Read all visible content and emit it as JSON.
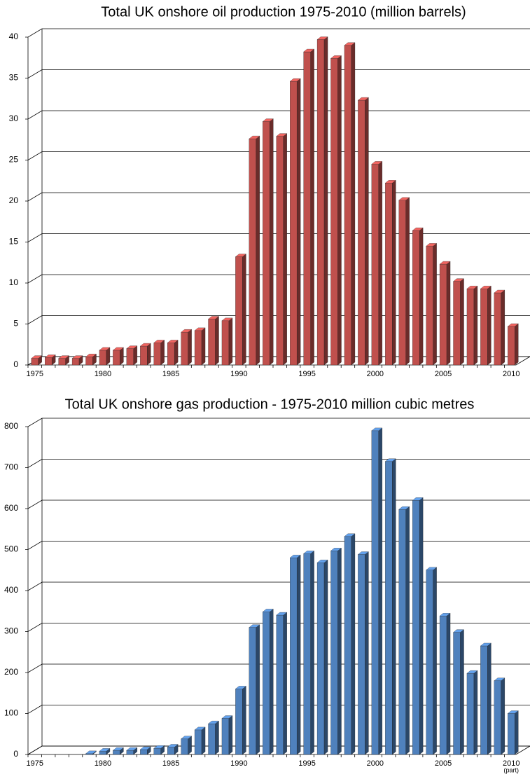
{
  "chart_data": [
    {
      "type": "bar3d",
      "title": "Total UK onshore oil production 1975-2010 (million barrels)",
      "categories": [
        "1975",
        null,
        null,
        null,
        null,
        "1980",
        null,
        null,
        null,
        null,
        "1985",
        null,
        null,
        null,
        null,
        "1990",
        null,
        null,
        null,
        null,
        "1995",
        null,
        null,
        null,
        null,
        "2000",
        null,
        null,
        null,
        null,
        "2005",
        null,
        null,
        null,
        null,
        "2010"
      ],
      "values": [
        0.8,
        0.9,
        0.8,
        0.8,
        1.0,
        1.8,
        1.8,
        2.0,
        2.3,
        2.7,
        2.7,
        4.0,
        4.2,
        5.6,
        5.4,
        13.2,
        27.6,
        29.7,
        27.9,
        34.6,
        38.2,
        39.7,
        37.4,
        39.0,
        32.3,
        24.5,
        22.2,
        20.1,
        16.4,
        14.5,
        12.3,
        10.2,
        9.3,
        9.3,
        8.8,
        4.7
      ],
      "color": "#c0504d",
      "ylim": [
        0,
        40
      ],
      "yticks": [
        0,
        5,
        10,
        15,
        20,
        25,
        30,
        35,
        40
      ],
      "grid": true
    },
    {
      "type": "bar3d",
      "title": "Total UK onshore gas production - 1975-2010 million cubic metres",
      "categories": [
        "1975",
        null,
        null,
        null,
        null,
        "1980",
        null,
        null,
        null,
        null,
        "1985",
        null,
        null,
        null,
        null,
        "1990",
        null,
        null,
        null,
        null,
        "1995",
        null,
        null,
        null,
        null,
        "2000",
        null,
        null,
        null,
        null,
        "2005",
        null,
        null,
        null,
        null,
        "2010"
      ],
      "x_note": "(part)",
      "values": [
        null,
        null,
        null,
        null,
        2,
        8,
        10,
        10,
        12,
        15,
        18,
        38,
        60,
        75,
        88,
        160,
        310,
        348,
        340,
        480,
        490,
        468,
        497,
        532,
        488,
        790,
        715,
        598,
        620,
        450,
        338,
        298,
        198,
        265,
        180,
        100
      ],
      "color": "#4f81bd",
      "ylim": [
        0,
        800
      ],
      "yticks": [
        0,
        100,
        200,
        300,
        400,
        500,
        600,
        700,
        800
      ],
      "grid": true
    }
  ]
}
